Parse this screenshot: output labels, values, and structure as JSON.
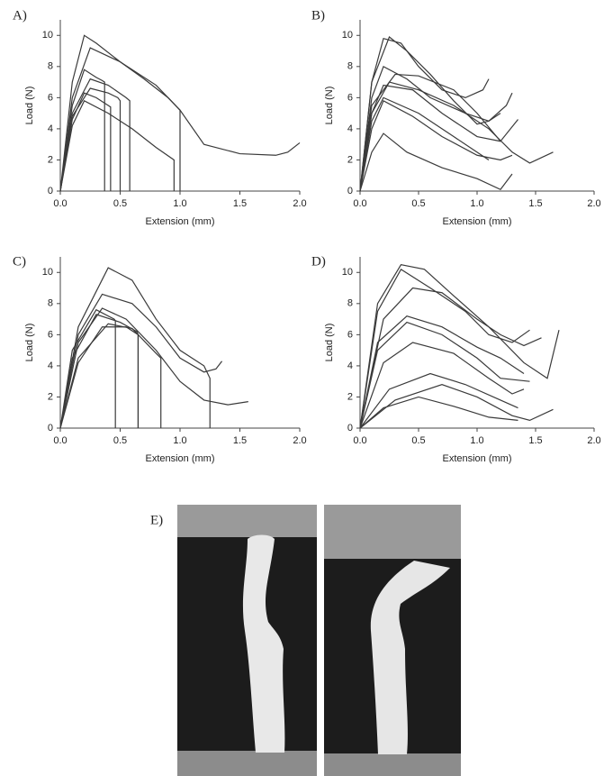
{
  "chart_data": [
    {
      "type": "line",
      "panel": "A)",
      "xlabel": "Extension (mm)",
      "ylabel": "Load (N)",
      "color": "#3a3a3a",
      "xlim": [
        0,
        2
      ],
      "xticks": [
        {
          "value": 0,
          "label": "0.0"
        },
        {
          "value": 0.5,
          "label": "0.5"
        },
        {
          "value": 1,
          "label": "1.0"
        },
        {
          "value": 1.5,
          "label": "1.5"
        },
        {
          "value": 2,
          "label": "2.0"
        }
      ],
      "ylim": [
        0,
        11
      ],
      "yticks": [
        0,
        2,
        4,
        6,
        8,
        10
      ],
      "series": [
        {
          "x": [
            0,
            0.1,
            0.2,
            0.3,
            0.5,
            0.7,
            0.9,
            1.0,
            1.0
          ],
          "values": [
            0,
            7,
            10,
            9.5,
            8.3,
            7.2,
            6,
            5.2,
            0
          ]
        },
        {
          "x": [
            0,
            0.1,
            0.25,
            0.5,
            0.8,
            1.0,
            1.2,
            1.5,
            1.8,
            1.9,
            2.0
          ],
          "values": [
            0,
            6,
            9.2,
            8.3,
            6.8,
            5.2,
            3,
            2.4,
            2.3,
            2.5,
            3.1
          ]
        },
        {
          "x": [
            0,
            0.1,
            0.2,
            0.3,
            0.35,
            0.37,
            0.37
          ],
          "values": [
            0,
            5.5,
            7.8,
            7.3,
            7.1,
            7,
            0
          ]
        },
        {
          "x": [
            0,
            0.1,
            0.25,
            0.4,
            0.55,
            0.58,
            0.58
          ],
          "values": [
            0,
            5,
            7.2,
            6.8,
            6,
            5.8,
            0
          ]
        },
        {
          "x": [
            0,
            0.1,
            0.25,
            0.4,
            0.48,
            0.5,
            0.5
          ],
          "values": [
            0,
            4.8,
            6.6,
            6.3,
            6,
            5.8,
            0
          ]
        },
        {
          "x": [
            0,
            0.1,
            0.2,
            0.3,
            0.4,
            0.42,
            0.42
          ],
          "values": [
            0,
            4.6,
            6.3,
            6,
            5.5,
            5.4,
            0
          ]
        },
        {
          "x": [
            0,
            0.1,
            0.2,
            0.4,
            0.6,
            0.8,
            0.95,
            0.95
          ],
          "values": [
            0,
            4.2,
            5.8,
            5,
            4,
            2.8,
            2,
            0
          ]
        }
      ]
    },
    {
      "type": "line",
      "panel": "B)",
      "xlabel": "Extension (mm)",
      "ylabel": "Load (N)",
      "color": "#3a3a3a",
      "xlim": [
        0,
        2
      ],
      "xticks": [
        {
          "value": 0,
          "label": "0.0"
        },
        {
          "value": 0.5,
          "label": "0.5"
        },
        {
          "value": 1,
          "label": "1.0"
        },
        {
          "value": 1.5,
          "label": "1.5"
        },
        {
          "value": 2,
          "label": "2.0"
        }
      ],
      "ylim": [
        0,
        11
      ],
      "yticks": [
        0,
        2,
        4,
        6,
        8,
        10
      ],
      "series": [
        {
          "x": [
            0,
            0.1,
            0.25,
            0.4,
            0.6,
            0.8,
            1.0,
            1.1,
            1.2
          ],
          "values": [
            0,
            7,
            9.9,
            9,
            7.5,
            5.8,
            4.3,
            4.5,
            5
          ]
        },
        {
          "x": [
            0,
            0.1,
            0.2,
            0.35,
            0.5,
            0.7,
            0.9,
            1.05,
            1.1
          ],
          "values": [
            0,
            7,
            9.8,
            9.5,
            8,
            6.5,
            6,
            6.5,
            7.2
          ]
        },
        {
          "x": [
            0,
            0.1,
            0.2,
            0.4,
            0.6,
            0.9,
            1.1,
            1.25,
            1.3
          ],
          "values": [
            0,
            6,
            8,
            7.2,
            6,
            5,
            4.5,
            5.5,
            6.3
          ]
        },
        {
          "x": [
            0,
            0.1,
            0.3,
            0.5,
            0.8,
            1.0,
            1.2,
            1.35
          ],
          "values": [
            0,
            5.5,
            7.5,
            7.4,
            6.5,
            5,
            3.2,
            4.6
          ]
        },
        {
          "x": [
            0,
            0.1,
            0.25,
            0.5,
            0.8,
            1.1,
            1.3,
            1.45,
            1.65
          ],
          "values": [
            0,
            5,
            7,
            6.5,
            5.5,
            4,
            2.5,
            1.8,
            2.5
          ]
        },
        {
          "x": [
            0,
            0.1,
            0.2,
            0.45,
            0.7,
            0.9,
            1.0,
            1.2
          ],
          "values": [
            0,
            5,
            6.8,
            6.5,
            5,
            4,
            3.5,
            3.2
          ]
        },
        {
          "x": [
            0,
            0.1,
            0.2,
            0.5,
            0.8,
            1.0,
            1.1
          ],
          "values": [
            0,
            4.5,
            6,
            5,
            3.5,
            2.5,
            2
          ]
        },
        {
          "x": [
            0,
            0.1,
            0.2,
            0.45,
            0.7,
            1.0,
            1.2,
            1.3
          ],
          "values": [
            0,
            4,
            5.8,
            4.8,
            3.5,
            2.3,
            2,
            2.3
          ]
        },
        {
          "x": [
            0,
            0.1,
            0.2,
            0.4,
            0.7,
            1.0,
            1.2,
            1.3
          ],
          "values": [
            0,
            2.5,
            3.7,
            2.5,
            1.5,
            0.8,
            0.1,
            1.1
          ]
        }
      ]
    },
    {
      "type": "line",
      "panel": "C)",
      "xlabel": "Extension (mm)",
      "ylabel": "Load (N)",
      "color": "#3a3a3a",
      "xlim": [
        0,
        2
      ],
      "xticks": [
        {
          "value": 0,
          "label": "0.0"
        },
        {
          "value": 0.5,
          "label": "0.5"
        },
        {
          "value": 1,
          "label": "1.0"
        },
        {
          "value": 1.5,
          "label": "1.5"
        },
        {
          "value": 2,
          "label": "2.0"
        }
      ],
      "ylim": [
        0,
        11
      ],
      "yticks": [
        0,
        2,
        4,
        6,
        8,
        10
      ],
      "series": [
        {
          "x": [
            0,
            0.15,
            0.4,
            0.6,
            0.8,
            1.0,
            1.2,
            1.25,
            1.25
          ],
          "values": [
            0,
            6.5,
            10.3,
            9.5,
            7,
            5,
            4,
            3.2,
            0
          ]
        },
        {
          "x": [
            0,
            0.15,
            0.35,
            0.6,
            0.8,
            1.0,
            1.2,
            1.3,
            1.35
          ],
          "values": [
            0,
            6,
            8.6,
            8,
            6.5,
            4.5,
            3.6,
            3.8,
            4.3
          ]
        },
        {
          "x": [
            0,
            0.15,
            0.35,
            0.55,
            0.8,
            1.0,
            1.2,
            1.4,
            1.57
          ],
          "values": [
            0,
            5.5,
            7.7,
            7,
            5,
            3,
            1.8,
            1.5,
            1.7
          ]
        },
        {
          "x": [
            0,
            0.1,
            0.3,
            0.45,
            0.46,
            0.46
          ],
          "values": [
            0,
            5,
            7.6,
            7,
            6.9,
            0
          ]
        },
        {
          "x": [
            0,
            0.1,
            0.3,
            0.5,
            0.64,
            0.65,
            0.65
          ],
          "values": [
            0,
            4.5,
            7.3,
            6.8,
            6.2,
            6,
            0
          ]
        },
        {
          "x": [
            0,
            0.15,
            0.4,
            0.6,
            0.8,
            0.84,
            0.84
          ],
          "values": [
            0,
            4.5,
            6.7,
            6.4,
            4.8,
            4.5,
            0
          ]
        },
        {
          "x": [
            0,
            0.15,
            0.35,
            0.55,
            0.65,
            0.65
          ],
          "values": [
            0,
            4.2,
            6.5,
            6.5,
            6,
            0
          ]
        }
      ]
    },
    {
      "type": "line",
      "panel": "D)",
      "xlabel": "Extension (mm)",
      "ylabel": "Load (N)",
      "color": "#3a3a3a",
      "xlim": [
        0,
        2
      ],
      "xticks": [
        {
          "value": 0,
          "label": "0.0"
        },
        {
          "value": 0.5,
          "label": "0.5"
        },
        {
          "value": 1,
          "label": "1.0"
        },
        {
          "value": 1.5,
          "label": "1.5"
        },
        {
          "value": 2,
          "label": "2.0"
        }
      ],
      "ylim": [
        0,
        11
      ],
      "yticks": [
        0,
        2,
        4,
        6,
        8,
        10
      ],
      "series": [
        {
          "x": [
            0,
            0.15,
            0.35,
            0.55,
            0.8,
            1.1,
            1.4,
            1.6,
            1.7
          ],
          "values": [
            0,
            8,
            10.5,
            10.2,
            8.5,
            6.5,
            4.2,
            3.2,
            6.3
          ]
        },
        {
          "x": [
            0,
            0.15,
            0.35,
            0.6,
            0.9,
            1.1,
            1.3,
            1.45
          ],
          "values": [
            0,
            7.5,
            10.2,
            9,
            7.5,
            6,
            5.5,
            6.3
          ]
        },
        {
          "x": [
            0,
            0.2,
            0.45,
            0.7,
            1.0,
            1.2,
            1.4,
            1.55
          ],
          "values": [
            0,
            7,
            9,
            8.7,
            7,
            6,
            5.3,
            5.8
          ]
        },
        {
          "x": [
            0,
            0.15,
            0.4,
            0.7,
            1.0,
            1.2,
            1.4
          ],
          "values": [
            0,
            5.5,
            7.2,
            6.5,
            5.2,
            4.5,
            3.5
          ]
        },
        {
          "x": [
            0,
            0.15,
            0.4,
            0.7,
            1.0,
            1.2,
            1.45
          ],
          "values": [
            0,
            5,
            6.8,
            6,
            4.5,
            3.2,
            3
          ]
        },
        {
          "x": [
            0,
            0.2,
            0.45,
            0.8,
            1.1,
            1.3,
            1.4
          ],
          "values": [
            0,
            4.2,
            5.5,
            4.8,
            3.2,
            2.2,
            2.5
          ]
        },
        {
          "x": [
            0,
            0.25,
            0.6,
            0.9,
            1.2,
            1.35
          ],
          "values": [
            0,
            2.5,
            3.5,
            2.8,
            1.8,
            1.3
          ]
        },
        {
          "x": [
            0,
            0.3,
            0.7,
            1.0,
            1.3,
            1.45,
            1.65
          ],
          "values": [
            0,
            1.8,
            2.8,
            2,
            0.8,
            0.5,
            1.2
          ]
        },
        {
          "x": [
            0,
            0.2,
            0.5,
            0.8,
            1.1,
            1.35
          ],
          "values": [
            0,
            1.3,
            2,
            1.4,
            0.7,
            0.5
          ]
        }
      ]
    }
  ],
  "figure_e": {
    "label": "E)"
  }
}
